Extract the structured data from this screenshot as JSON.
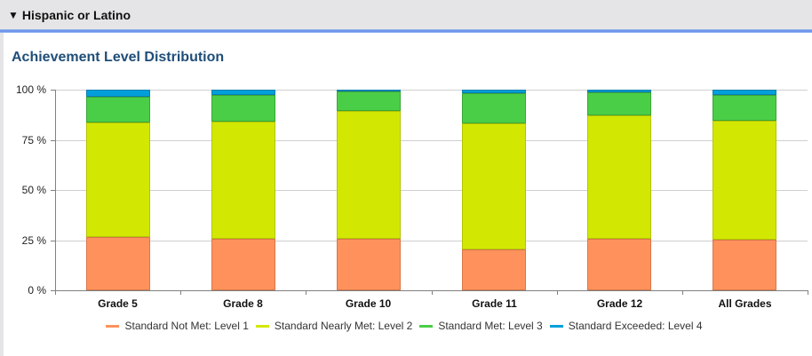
{
  "header": {
    "toggle_icon": "▼",
    "title": "Hispanic or Latino"
  },
  "section": {
    "title": "Achievement Level Distribution"
  },
  "colors": {
    "level1": "#ff925c",
    "level2": "#d2e802",
    "level3": "#4bce47",
    "level4": "#009fd9",
    "level1_border": "#d8774a",
    "level2_border": "#b3c400",
    "level3_border": "#3aa637",
    "level4_border": "#0a7fb0"
  },
  "chart_data": {
    "type": "bar",
    "stacked": true,
    "title": "Achievement Level Distribution",
    "xlabel": "",
    "ylabel": "",
    "ylim": [
      0,
      100
    ],
    "yticks": [
      "0 %",
      "25 %",
      "50 %",
      "75 %",
      "100 %"
    ],
    "grid": true,
    "legend_position": "bottom",
    "categories": [
      "Grade 5",
      "Grade 8",
      "Grade 10",
      "Grade 11",
      "Grade 12",
      "All Grades"
    ],
    "series": [
      {
        "name": "Standard Not Met: Level 1",
        "color": "#ff925c",
        "values": [
          26.5,
          25.7,
          25.7,
          20.4,
          25.7,
          25.2
        ]
      },
      {
        "name": "Standard Nearly Met: Level 2",
        "color": "#d2e802",
        "values": [
          57.1,
          58.4,
          63.7,
          62.8,
          61.5,
          59.3
        ]
      },
      {
        "name": "Standard Met: Level 3",
        "color": "#4bce47",
        "values": [
          12.9,
          13.2,
          9.7,
          15.0,
          11.5,
          12.8
        ]
      },
      {
        "name": "Standard Exceeded: Level 4",
        "color": "#009fd9",
        "values": [
          3.5,
          2.7,
          0.9,
          1.8,
          1.3,
          2.7
        ]
      }
    ]
  },
  "legend": {
    "items": [
      {
        "label": "Standard Not Met: Level 1",
        "color": "#ff925c"
      },
      {
        "label": "Standard Nearly Met: Level 2",
        "color": "#d2e802"
      },
      {
        "label": "Standard Met: Level 3",
        "color": "#4bce47"
      },
      {
        "label": "Standard Exceeded: Level 4",
        "color": "#009fd9"
      }
    ]
  }
}
